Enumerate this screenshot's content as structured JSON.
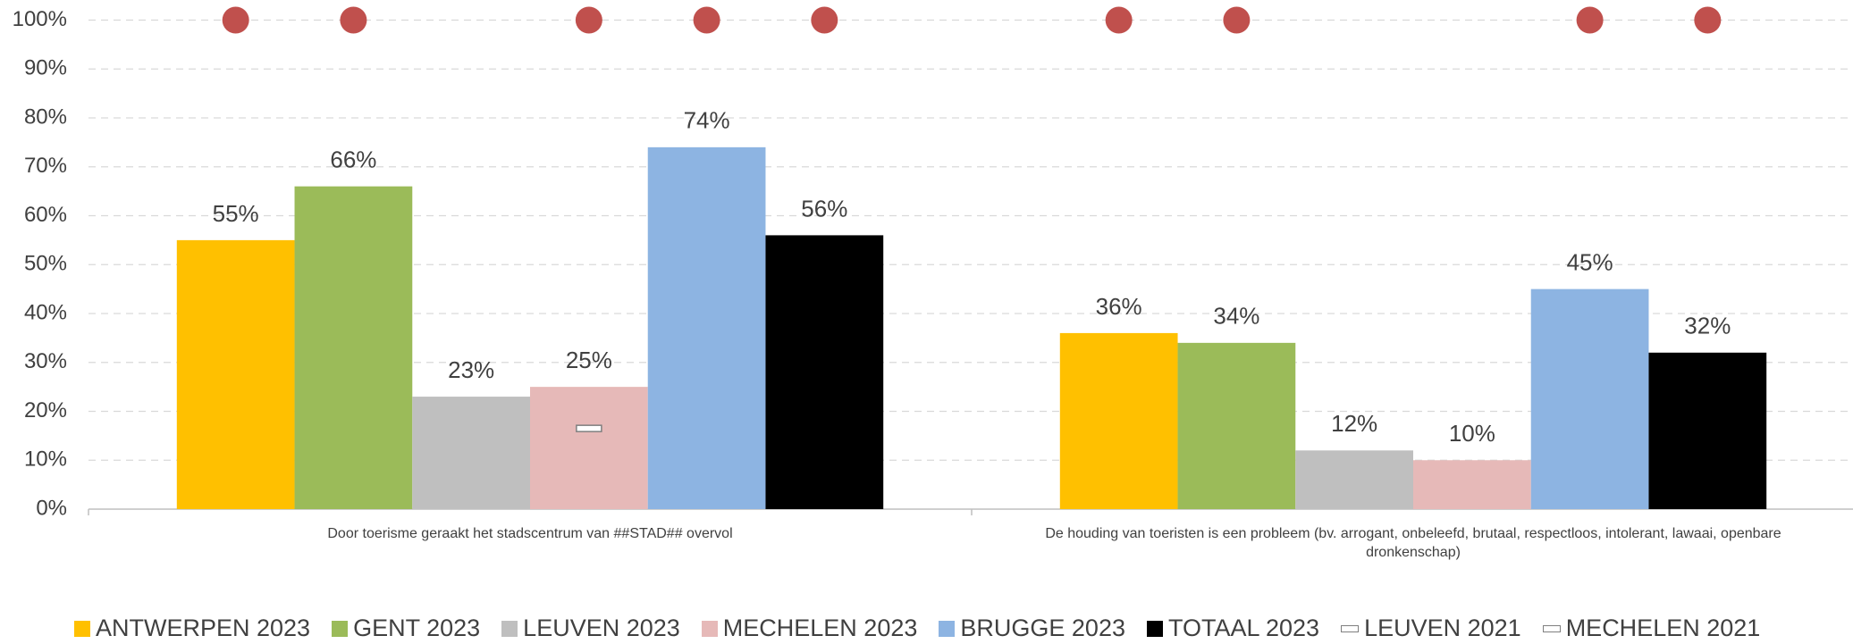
{
  "chart_data": {
    "type": "bar",
    "categories": [
      "Door toerisme geraakt het stadscentrum van ##STAD## overvol",
      "De houding van toeristen is een probleem (bv. arrogant, onbeleefd, brutaal, respectloos, intolerant, lawaai, openbare dronkenschap)"
    ],
    "series": [
      {
        "name": "ANTWERPEN 2023",
        "color": "#ffc000",
        "values": [
          55,
          36
        ],
        "value_labels": [
          "55%",
          "36%"
        ]
      },
      {
        "name": "GENT 2023",
        "color": "#9bbb59",
        "values": [
          66,
          34
        ],
        "value_labels": [
          "66%",
          "34%"
        ]
      },
      {
        "name": "LEUVEN 2023",
        "color": "#bfbfbf",
        "values": [
          23,
          12
        ],
        "value_labels": [
          "23%",
          "12%"
        ]
      },
      {
        "name": "MECHELEN 2023",
        "color": "#e6b9b8",
        "values": [
          25,
          10
        ],
        "value_labels": [
          "25%",
          "10%"
        ]
      },
      {
        "name": "BRUGGE 2023",
        "color": "#8db4e2",
        "values": [
          74,
          45
        ],
        "value_labels": [
          "74%",
          "45%"
        ]
      },
      {
        "name": "TOTAAL 2023",
        "color": "#000000",
        "values": [
          56,
          32
        ],
        "value_labels": [
          "56%",
          "32%"
        ]
      },
      {
        "name": "LEUVEN 2021",
        "color": "#ffffff",
        "marker": "dash",
        "bar_index": 2,
        "values": [
          null,
          null
        ]
      },
      {
        "name": "MECHELEN 2021",
        "color": "#ffffff",
        "marker": "dash",
        "bar_index": 3,
        "values": [
          16.5,
          null
        ]
      }
    ],
    "markers": {
      "color": "#c0504d",
      "values": [
        [
          100,
          100,
          null,
          100,
          100,
          100
        ],
        [
          100,
          100,
          null,
          null,
          100,
          100
        ]
      ]
    },
    "ylim": [
      0,
      100
    ],
    "yticks": [
      {
        "value": 0,
        "label": "0%"
      },
      {
        "value": 10,
        "label": "10%"
      },
      {
        "value": 20,
        "label": "20%"
      },
      {
        "value": 30,
        "label": "30%"
      },
      {
        "value": 40,
        "label": "40%"
      },
      {
        "value": 50,
        "label": "50%"
      },
      {
        "value": 60,
        "label": "60%"
      },
      {
        "value": 70,
        "label": "70%"
      },
      {
        "value": 80,
        "label": "80%"
      },
      {
        "value": 90,
        "label": "90%"
      },
      {
        "value": 100,
        "label": "100%"
      }
    ],
    "grid": true
  }
}
